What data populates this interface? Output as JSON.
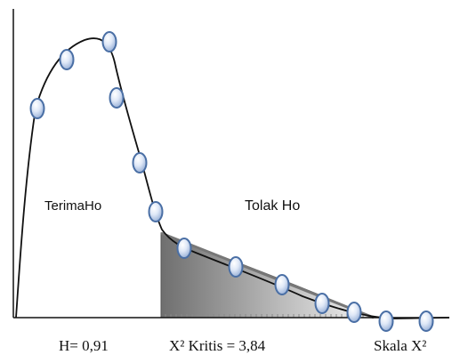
{
  "labels": {
    "accept_region": "TerimaHo",
    "reject_region": "Tolak Ho",
    "h_value": "H= 0,91",
    "critical_value": "X² Kritis = 3,84",
    "axis_scale": "Skala X²"
  },
  "colors": {
    "axis": "#111111",
    "curve": "#111111",
    "shade_dark": "#6f6f6f",
    "shade_light": "#f2f2f2",
    "marker_fill": "#c9d8f0",
    "marker_stroke": "#4a6fa5"
  },
  "markers": {
    "count": 13,
    "shape": "ellipse"
  }
}
